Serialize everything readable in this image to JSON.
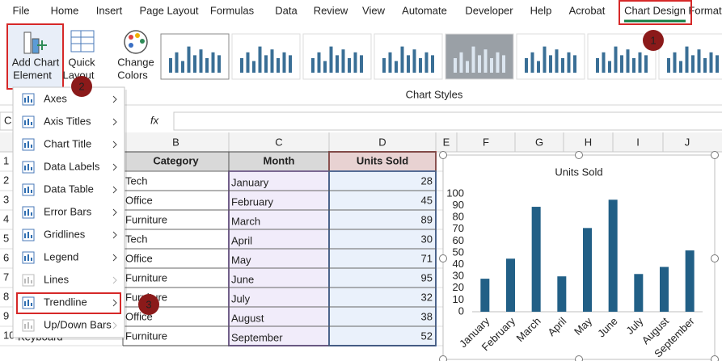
{
  "ribbon": {
    "tabs": [
      "File",
      "Home",
      "Insert",
      "Page Layout",
      "Formulas",
      "Data",
      "Review",
      "View",
      "Automate",
      "Developer",
      "Help",
      "Acrobat",
      "Chart Design",
      "Format"
    ],
    "add_chart_element": [
      "Add Chart",
      "Element"
    ],
    "quick_layout": [
      "Quick",
      "Layout"
    ],
    "change_colors": [
      "Change",
      "Colors"
    ],
    "group_label": "Chart Styles"
  },
  "badges": [
    "1",
    "2",
    "3"
  ],
  "menu": {
    "items": [
      "Axes",
      "Axis Titles",
      "Chart Title",
      "Data Labels",
      "Data Table",
      "Error Bars",
      "Gridlines",
      "Legend",
      "Lines",
      "Trendline",
      "Up/Down Bars"
    ]
  },
  "formula_bar": {
    "name_box": "C",
    "fx": "fx"
  },
  "sheet": {
    "columns": [
      "B",
      "C",
      "D",
      "E",
      "F",
      "G",
      "H",
      "I",
      "J"
    ],
    "rows": [
      "1",
      "2",
      "3",
      "4",
      "5",
      "6",
      "7",
      "8",
      "9",
      "10"
    ],
    "cell_a10": "Keyboard",
    "table": {
      "header": [
        "Category",
        "Month",
        "Units Sold"
      ],
      "rows": [
        [
          "Tech",
          "January",
          28
        ],
        [
          "Office",
          "February",
          45
        ],
        [
          "Furniture",
          "March",
          89
        ],
        [
          "Tech",
          "April",
          30
        ],
        [
          "Office",
          "May",
          71
        ],
        [
          "Furniture",
          "June",
          95
        ],
        [
          "Furniture",
          "July",
          32
        ],
        [
          "Office",
          "August",
          38
        ],
        [
          "Furniture",
          "September",
          52
        ]
      ]
    }
  },
  "chart_data": {
    "type": "bar",
    "title": "Units Sold",
    "categories": [
      "January",
      "February",
      "March",
      "April",
      "May",
      "June",
      "July",
      "August",
      "September"
    ],
    "values": [
      28,
      45,
      89,
      30,
      71,
      95,
      32,
      38,
      52
    ],
    "color": "#215f86",
    "ylim": [
      0,
      100
    ],
    "yticks": [
      0,
      10,
      20,
      30,
      40,
      50,
      60,
      70,
      80,
      90,
      100
    ],
    "grid": false
  }
}
